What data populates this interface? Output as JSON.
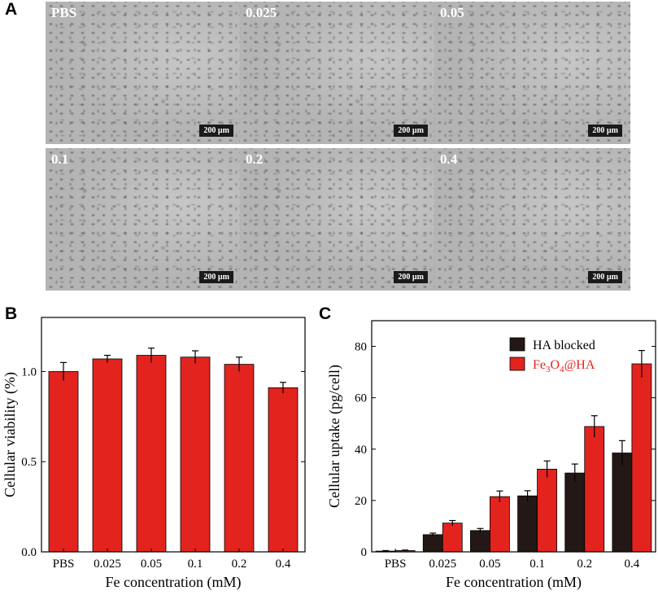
{
  "panels": {
    "a": "A",
    "b": "B",
    "c": "C"
  },
  "micrographs": [
    {
      "label": "PBS",
      "scale": "200 µm"
    },
    {
      "label": "0.025",
      "scale": "200 µm"
    },
    {
      "label": "0.05",
      "scale": "200 µm"
    },
    {
      "label": "0.1",
      "scale": "200 µm"
    },
    {
      "label": "0.2",
      "scale": "200 µm"
    },
    {
      "label": "0.4",
      "scale": "200 µm"
    }
  ],
  "colors": {
    "red": "#e3231e",
    "dark": "#231815"
  },
  "chart_data": [
    {
      "type": "bar",
      "categories": [
        "PBS",
        "0.025",
        "0.05",
        "0.1",
        "0.2",
        "0.4"
      ],
      "series": [
        {
          "values": [
            1.0,
            1.07,
            1.09,
            1.08,
            1.04,
            0.91
          ],
          "errors": [
            0.05,
            0.02,
            0.04,
            0.035,
            0.04,
            0.03
          ]
        }
      ],
      "xlabel": "Fe concentration (mM)",
      "ylabel": "Cellular viability (%)",
      "ylim": [
        0,
        1.3
      ],
      "yticks": [
        "0.0",
        "0.5",
        "1.0"
      ]
    },
    {
      "type": "bar",
      "categories": [
        "PBS",
        "0.025",
        "0.05",
        "0.1",
        "0.2",
        "0.4"
      ],
      "series": [
        {
          "name": "HA blocked",
          "values": [
            0.3,
            6.7,
            8.3,
            21.8,
            30.7,
            38.5
          ],
          "errors": [
            0.2,
            0.6,
            0.8,
            2.0,
            3.5,
            4.8
          ]
        },
        {
          "name": "Fe3O4@HA",
          "values": [
            0.5,
            11.2,
            21.5,
            32.2,
            48.8,
            73.2
          ],
          "errors": [
            0.2,
            1.0,
            2.2,
            3.2,
            4.2,
            5.2
          ]
        }
      ],
      "xlabel": "Fe concentration (mM)",
      "ylabel": "Cellular uptake (pg/cell)",
      "ylim": [
        0,
        90
      ],
      "yticks": [
        "0",
        "20",
        "40",
        "60",
        "80"
      ],
      "legend": "top-right"
    }
  ]
}
